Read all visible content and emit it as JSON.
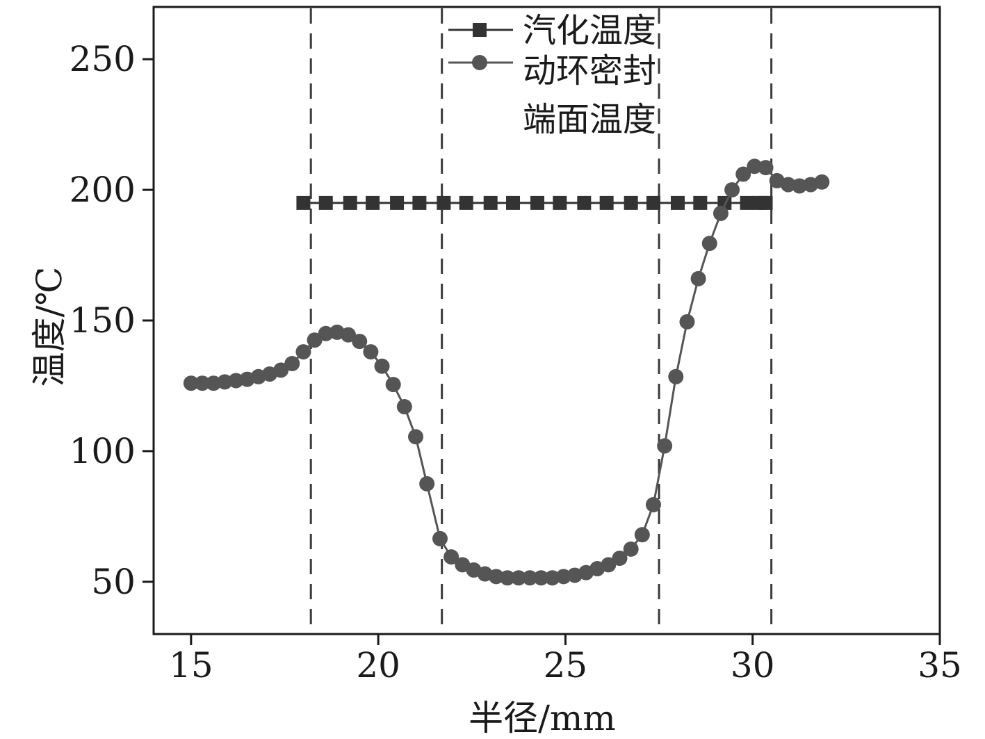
{
  "chart_data": {
    "type": "line",
    "title": "",
    "xlabel": "半径/mm",
    "ylabel": "温度/℃",
    "xlim": [
      14,
      35
    ],
    "ylim": [
      30,
      270
    ],
    "x_ticks": [
      15,
      20,
      25,
      30,
      35
    ],
    "y_ticks": [
      50,
      100,
      150,
      200,
      250
    ],
    "grid": false,
    "legend_position": "top-center",
    "reference_lines_x": [
      18.2,
      21.7,
      27.5,
      30.5
    ],
    "series": [
      {
        "name": "汽化温度",
        "marker": "square",
        "color": "#333333",
        "x": [
          18.0,
          18.6,
          19.25,
          19.85,
          20.5,
          21.1,
          21.75,
          22.35,
          23.0,
          23.6,
          24.25,
          24.85,
          25.5,
          26.1,
          26.75,
          27.35,
          28.0,
          28.6,
          29.25,
          29.85,
          30.2,
          30.35
        ],
        "y": [
          195,
          195,
          195,
          195,
          195,
          195,
          195,
          195,
          195,
          195,
          195,
          195,
          195,
          195,
          195,
          195,
          195,
          195,
          195,
          195,
          195,
          195
        ]
      },
      {
        "name": "动环密封端面温度",
        "marker": "circle",
        "color": "#555555",
        "x": [
          15.0,
          15.3,
          15.6,
          15.9,
          16.2,
          16.5,
          16.8,
          17.1,
          17.4,
          17.7,
          18.0,
          18.3,
          18.6,
          18.9,
          19.2,
          19.5,
          19.8,
          20.1,
          20.4,
          20.7,
          21.0,
          21.3,
          21.65,
          21.95,
          22.25,
          22.55,
          22.85,
          23.15,
          23.45,
          23.75,
          24.05,
          24.35,
          24.65,
          24.95,
          25.25,
          25.55,
          25.85,
          26.15,
          26.45,
          26.75,
          27.05,
          27.35,
          27.65,
          27.95,
          28.25,
          28.55,
          28.85,
          29.15,
          29.45,
          29.75,
          30.05,
          30.35,
          30.65,
          30.95,
          31.25,
          31.55,
          31.85
        ],
        "y": [
          126,
          126,
          126,
          126.5,
          127,
          127.5,
          128.5,
          129.5,
          131,
          133.5,
          138,
          142.5,
          145,
          145.5,
          144.5,
          142,
          138,
          132.5,
          125.5,
          117,
          105.5,
          87.5,
          66.5,
          59.5,
          56.5,
          54.5,
          53,
          52,
          51.5,
          51.5,
          51.5,
          51.5,
          51.5,
          52,
          52.5,
          53.5,
          55,
          56.5,
          59,
          62.5,
          68,
          79.5,
          102,
          128.5,
          149.5,
          166,
          179.5,
          191,
          200,
          206,
          209,
          208.5,
          203.5,
          202,
          201.5,
          202,
          203
        ]
      }
    ],
    "legend": {
      "line1": "汽化温度",
      "line2a": "动环密封",
      "line2b": "端面温度"
    }
  }
}
